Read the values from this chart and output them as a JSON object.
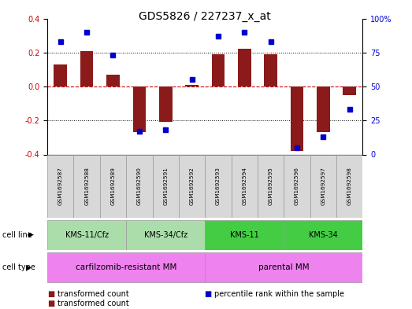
{
  "title": "GDS5826 / 227237_x_at",
  "samples": [
    "GSM1692587",
    "GSM1692588",
    "GSM1692589",
    "GSM1692590",
    "GSM1692591",
    "GSM1692592",
    "GSM1692593",
    "GSM1692594",
    "GSM1692595",
    "GSM1692596",
    "GSM1692597",
    "GSM1692598"
  ],
  "transformed_count": [
    0.13,
    0.21,
    0.07,
    -0.27,
    -0.21,
    0.01,
    0.19,
    0.22,
    0.19,
    -0.38,
    -0.27,
    -0.05
  ],
  "percentile_rank": [
    83,
    90,
    73,
    17,
    18,
    55,
    87,
    90,
    83,
    5,
    13,
    33
  ],
  "bar_color": "#8B1A1A",
  "dot_color": "#0000CD",
  "zero_line_color": "#CC0000",
  "cell_line_colors": [
    "#AADDAA",
    "#AADDAA",
    "#44CC44",
    "#44CC44"
  ],
  "cell_type_color": "#EE82EE",
  "cell_line_groups": [
    {
      "label": "KMS-11/Cfz",
      "start": 0,
      "end": 3
    },
    {
      "label": "KMS-34/Cfz",
      "start": 3,
      "end": 6
    },
    {
      "label": "KMS-11",
      "start": 6,
      "end": 9
    },
    {
      "label": "KMS-34",
      "start": 9,
      "end": 12
    }
  ],
  "cell_type_groups": [
    {
      "label": "carfilzomib-resistant MM",
      "start": 0,
      "end": 6
    },
    {
      "label": "parental MM",
      "start": 6,
      "end": 12
    }
  ],
  "ylim_left": [
    -0.4,
    0.4
  ],
  "ylim_right": [
    0,
    100
  ],
  "yticks_left": [
    -0.4,
    -0.2,
    0.0,
    0.2,
    0.4
  ],
  "yticks_right": [
    0,
    25,
    50,
    75,
    100
  ],
  "ytick_labels_right": [
    "0",
    "25",
    "50",
    "75",
    "100%"
  ],
  "legend_items": [
    {
      "label": "transformed count",
      "color": "#8B1A1A"
    },
    {
      "label": "percentile rank within the sample",
      "color": "#0000CD"
    }
  ],
  "cell_line_row_label": "cell line",
  "cell_type_row_label": "cell type"
}
